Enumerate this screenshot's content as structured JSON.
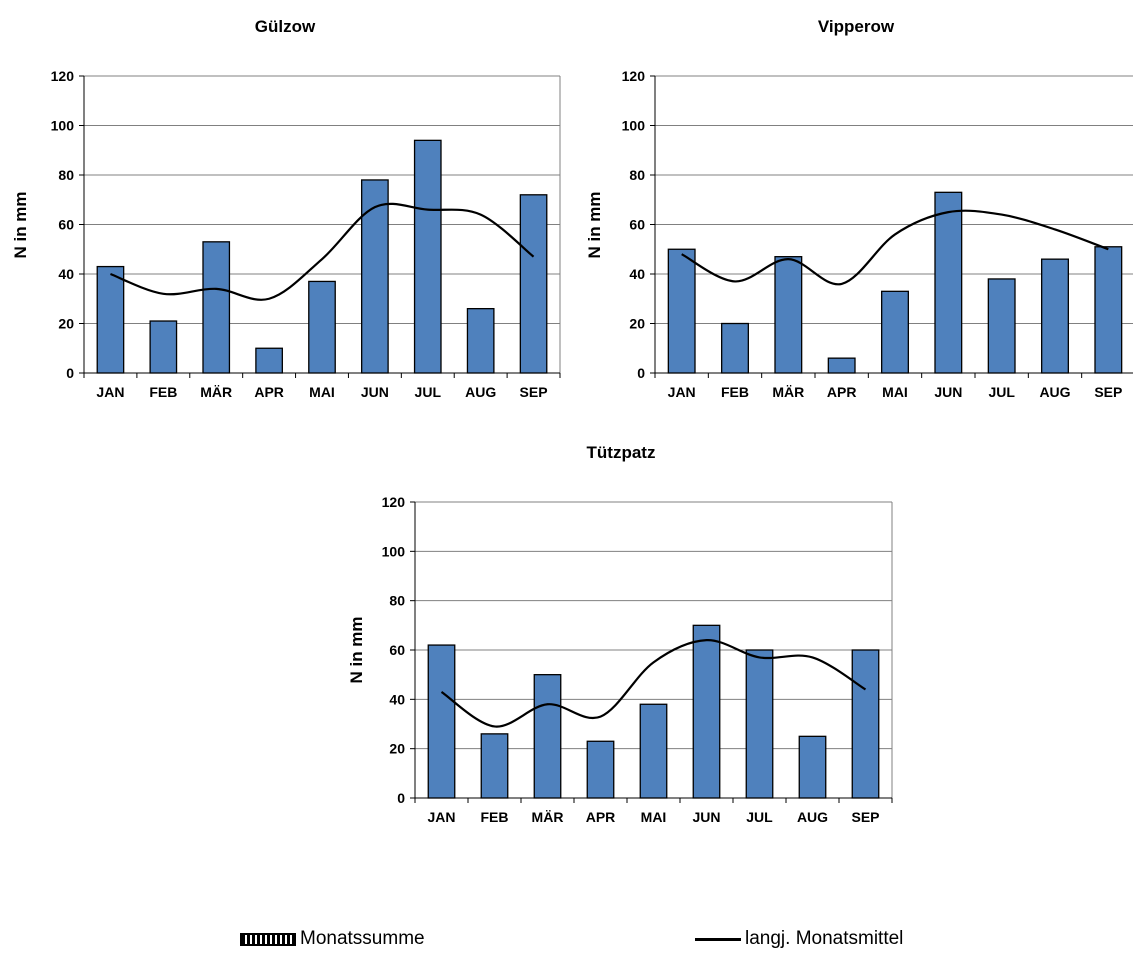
{
  "chart_data": [
    {
      "type": "bar",
      "title": "Gülzow",
      "ylabel": "N in mm",
      "ylim": [
        0,
        120
      ],
      "yticks": [
        0,
        20,
        40,
        60,
        80,
        100,
        120
      ],
      "categories": [
        "JAN",
        "FEB",
        "MÄR",
        "APR",
        "MAI",
        "JUN",
        "JUL",
        "AUG",
        "SEP"
      ],
      "series": [
        {
          "name": "Monatssumme",
          "type": "bar",
          "values": [
            43,
            21,
            53,
            10,
            37,
            78,
            94,
            26,
            72
          ]
        },
        {
          "name": "langj. Monatsmittel",
          "type": "line",
          "values": [
            40,
            32,
            34,
            30,
            46,
            67,
            66,
            64,
            47
          ]
        }
      ],
      "grid": true
    },
    {
      "type": "bar",
      "title": "Vipperow",
      "ylabel": "N in mm",
      "ylim": [
        0,
        120
      ],
      "yticks": [
        0,
        20,
        40,
        60,
        80,
        100,
        120
      ],
      "categories": [
        "JAN",
        "FEB",
        "MÄR",
        "APR",
        "MAI",
        "JUN",
        "JUL",
        "AUG",
        "SEP"
      ],
      "series": [
        {
          "name": "Monatssumme",
          "type": "bar",
          "values": [
            50,
            20,
            47,
            6,
            33,
            73,
            38,
            46,
            51
          ]
        },
        {
          "name": "langj. Monatsmittel",
          "type": "line",
          "values": [
            48,
            37,
            46,
            36,
            56,
            65,
            64,
            58,
            50
          ]
        }
      ],
      "grid": true
    },
    {
      "type": "bar",
      "title": "Tützpatz",
      "ylabel": "N in mm",
      "ylim": [
        0,
        120
      ],
      "yticks": [
        0,
        20,
        40,
        60,
        80,
        100,
        120
      ],
      "categories": [
        "JAN",
        "FEB",
        "MÄR",
        "APR",
        "MAI",
        "JUN",
        "JUL",
        "AUG",
        "SEP"
      ],
      "series": [
        {
          "name": "Monatssumme",
          "type": "bar",
          "values": [
            62,
            26,
            50,
            23,
            38,
            70,
            60,
            25,
            60
          ]
        },
        {
          "name": "langj. Monatsmittel",
          "type": "line",
          "values": [
            43,
            29,
            38,
            33,
            55,
            64,
            57,
            57,
            44
          ]
        }
      ],
      "grid": true
    }
  ],
  "legend": {
    "bars_label": "Monatssumme",
    "line_label": "langj. Monatsmittel"
  },
  "colors": {
    "bar_fill": "#4f81bd",
    "bar_stroke": "#000000",
    "line": "#000000",
    "grid": "#808080"
  }
}
